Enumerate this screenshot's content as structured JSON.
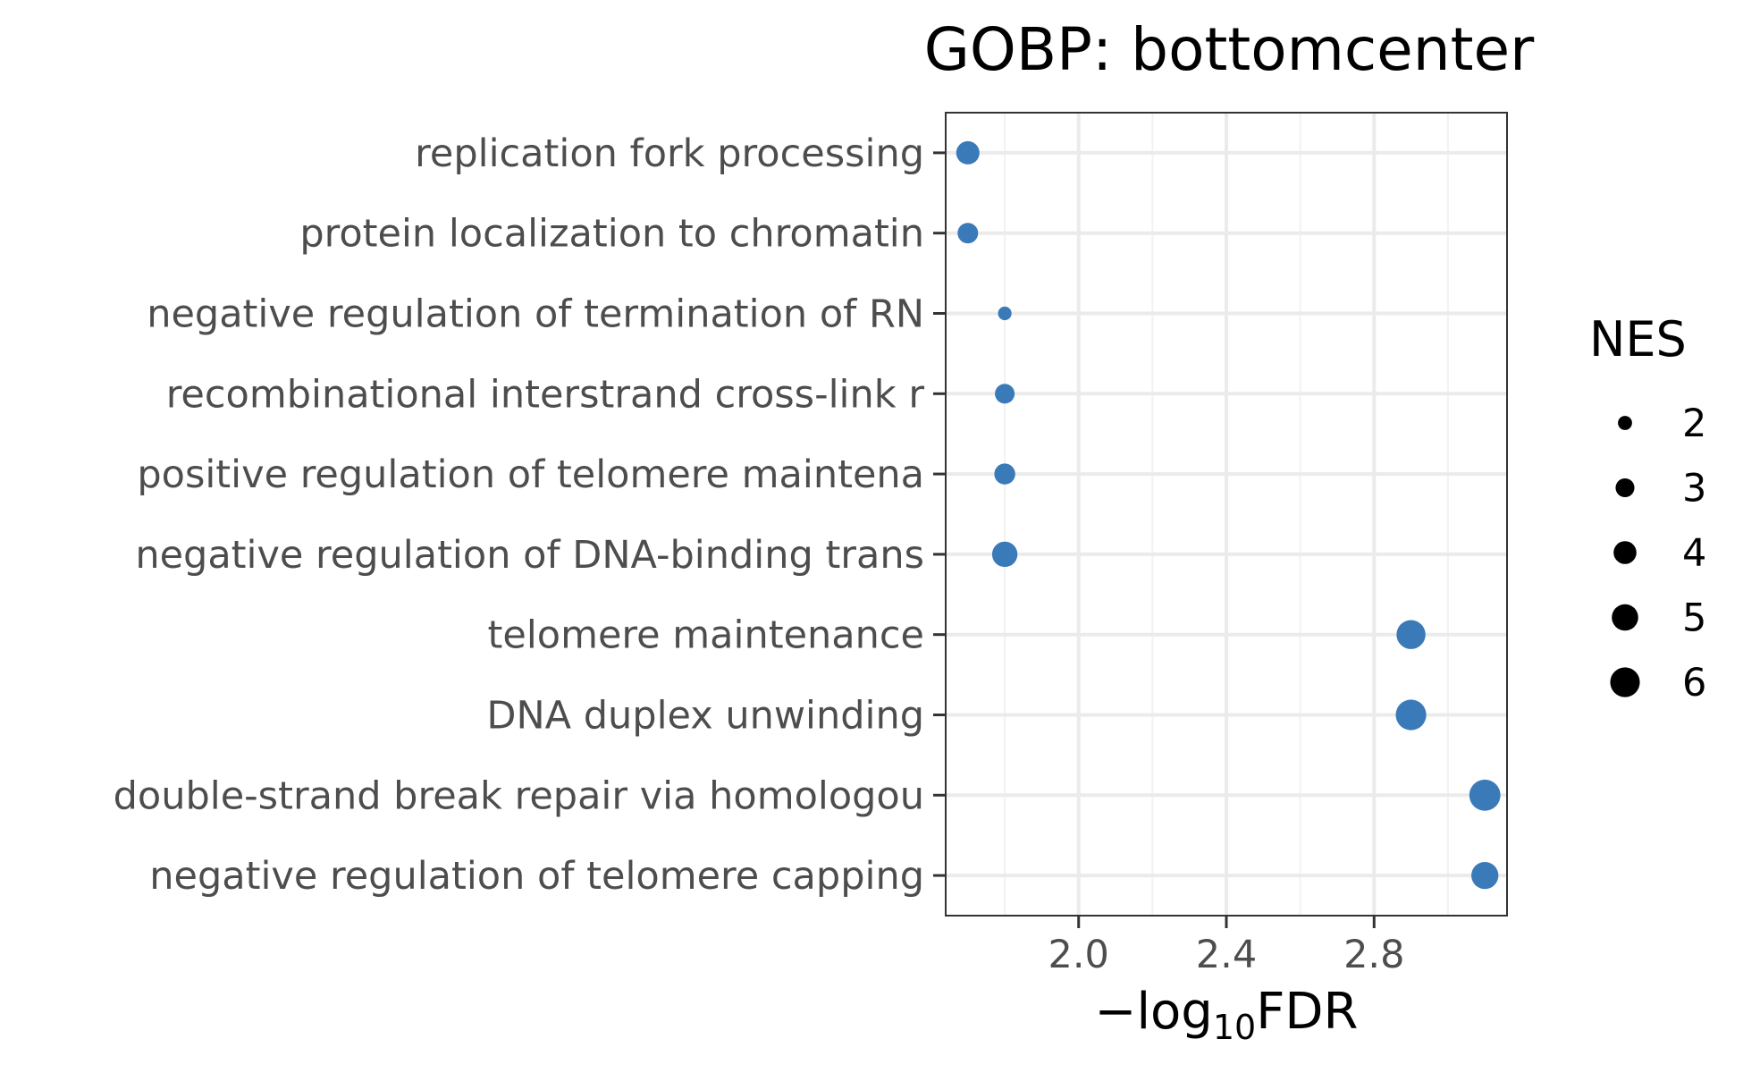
{
  "chart_data": {
    "type": "scatter",
    "title": "GOBP: bottomcenter",
    "xlabel": {
      "prefix": "−log",
      "subscript": "10",
      "suffix": "FDR"
    },
    "ylabel": "",
    "xlim": [
      1.64,
      3.16
    ],
    "xticks": [
      2.0,
      2.4,
      2.8
    ],
    "xtick_labels": [
      "2.0",
      "2.4",
      "2.8"
    ],
    "grid": true,
    "point_color": "#3a7ab9",
    "categories": [
      "replication fork processing",
      "protein localization to chromatin",
      "negative regulation of termination of RN",
      "recombinational interstrand cross-link r",
      "positive regulation of telomere maintena",
      "negative regulation of DNA-binding trans",
      "telomere maintenance",
      "DNA duplex unwinding",
      "double-strand break repair via homologou",
      "negative regulation of telomere capping"
    ],
    "x": [
      1.7,
      1.7,
      1.8,
      1.8,
      1.8,
      1.8,
      2.9,
      2.9,
      3.1,
      3.1
    ],
    "size": [
      4.1,
      3.4,
      1.9,
      3.2,
      3.5,
      4.7,
      5.8,
      6.3,
      6.5,
      5.2
    ],
    "legend": {
      "title": "NES",
      "position": "right",
      "values": [
        2,
        3,
        4,
        5,
        6
      ],
      "labels": [
        "2",
        "3",
        "4",
        "5",
        "6"
      ]
    }
  }
}
